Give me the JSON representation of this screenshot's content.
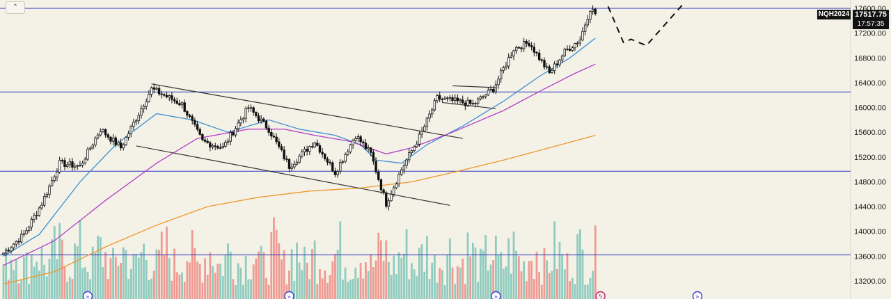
{
  "toolbar": {
    "collapse_icon": "chevron-up-icon",
    "collapse_glyph": "⌃"
  },
  "symbol": "NQH2024",
  "last_price": "17517.75",
  "countdown": "17:57:35",
  "colors": {
    "background": "#f4f2e6",
    "up": "#111111",
    "down": "#111111",
    "vol_up": "#8fcbbf",
    "vol_down": "#ef9a93",
    "ma_fast": "#3b8fd4",
    "ma_mid": "#b23ec8",
    "ma_slow": "#f0962a",
    "hline": "#2f36c0",
    "channel": "#333333",
    "projection": "#111111"
  },
  "chart_data": {
    "type": "candlestick",
    "y_axis": {
      "ticks": [
        "17600.00",
        "17200.00",
        "16800.00",
        "16400.00",
        "16000.00",
        "15600.00",
        "15200.00",
        "14800.00",
        "14400.00",
        "14000.00",
        "13600.00",
        "13200.00"
      ],
      "range": [
        13100,
        17700
      ]
    },
    "horizontal_levels": [
      17600,
      16250,
      14970,
      13620
    ],
    "anchors": [
      {
        "i": 0,
        "p": 13650
      },
      {
        "i": 8,
        "p": 13950
      },
      {
        "i": 15,
        "p": 14450
      },
      {
        "i": 22,
        "p": 15100
      },
      {
        "i": 30,
        "p": 15050
      },
      {
        "i": 38,
        "p": 15650
      },
      {
        "i": 46,
        "p": 15350
      },
      {
        "i": 58,
        "p": 16300
      },
      {
        "i": 70,
        "p": 16050
      },
      {
        "i": 78,
        "p": 15450
      },
      {
        "i": 86,
        "p": 15350
      },
      {
        "i": 96,
        "p": 16000
      },
      {
        "i": 104,
        "p": 15650
      },
      {
        "i": 112,
        "p": 15050
      },
      {
        "i": 122,
        "p": 15450
      },
      {
        "i": 130,
        "p": 14950
      },
      {
        "i": 138,
        "p": 15550
      },
      {
        "i": 144,
        "p": 15250
      },
      {
        "i": 150,
        "p": 14450
      },
      {
        "i": 156,
        "p": 15000
      },
      {
        "i": 164,
        "p": 15600
      },
      {
        "i": 170,
        "p": 16150
      },
      {
        "i": 184,
        "p": 16050
      },
      {
        "i": 192,
        "p": 16300
      },
      {
        "i": 200,
        "p": 16950
      },
      {
        "i": 206,
        "p": 17050
      },
      {
        "i": 214,
        "p": 16550
      },
      {
        "i": 220,
        "p": 16900
      },
      {
        "i": 226,
        "p": 17100
      },
      {
        "i": 230,
        "p": 17600
      },
      {
        "i": 232,
        "p": 17517
      }
    ],
    "candle_count": 233,
    "moving_averages": [
      {
        "name": "MA fast",
        "color_key": "ma_fast",
        "points": [
          [
            0,
            13600
          ],
          [
            14,
            13950
          ],
          [
            30,
            14800
          ],
          [
            44,
            15400
          ],
          [
            60,
            15900
          ],
          [
            74,
            15800
          ],
          [
            88,
            15600
          ],
          [
            104,
            15800
          ],
          [
            116,
            15650
          ],
          [
            130,
            15550
          ],
          [
            140,
            15400
          ],
          [
            146,
            15150
          ],
          [
            156,
            15100
          ],
          [
            166,
            15400
          ],
          [
            180,
            15700
          ],
          [
            196,
            16100
          ],
          [
            210,
            16500
          ],
          [
            222,
            16800
          ],
          [
            232,
            17120
          ]
        ]
      },
      {
        "name": "MA mid",
        "color_key": "ma_mid",
        "points": [
          [
            0,
            13450
          ],
          [
            20,
            13850
          ],
          [
            40,
            14500
          ],
          [
            60,
            15100
          ],
          [
            76,
            15500
          ],
          [
            96,
            15650
          ],
          [
            110,
            15650
          ],
          [
            122,
            15550
          ],
          [
            136,
            15450
          ],
          [
            150,
            15250
          ],
          [
            160,
            15350
          ],
          [
            176,
            15600
          ],
          [
            196,
            15950
          ],
          [
            212,
            16300
          ],
          [
            224,
            16550
          ],
          [
            232,
            16700
          ]
        ]
      },
      {
        "name": "MA slow",
        "color_key": "ma_slow",
        "points": [
          [
            0,
            13150
          ],
          [
            20,
            13350
          ],
          [
            40,
            13750
          ],
          [
            60,
            14100
          ],
          [
            80,
            14400
          ],
          [
            100,
            14550
          ],
          [
            120,
            14650
          ],
          [
            140,
            14700
          ],
          [
            160,
            14800
          ],
          [
            176,
            14950
          ],
          [
            196,
            15150
          ],
          [
            214,
            15350
          ],
          [
            232,
            15550
          ]
        ]
      }
    ],
    "channel_lines": [
      [
        [
          58,
          16380
        ],
        [
          180,
          15500
        ]
      ],
      [
        [
          52,
          15380
        ],
        [
          175,
          14420
        ]
      ],
      [
        [
          176,
          16350
        ],
        [
          193,
          16320
        ]
      ],
      [
        [
          172,
          16080
        ],
        [
          193,
          15980
        ]
      ]
    ],
    "projection_path": [
      [
        237,
        17630
      ],
      [
        243,
        17050
      ],
      [
        246,
        17100
      ],
      [
        252,
        17000
      ],
      [
        266,
        17650
      ]
    ],
    "volume": {
      "min_height": 20,
      "max_height": 118
    }
  },
  "event_markers": [
    {
      "name": "event-marker",
      "glyph": "»",
      "i": 33
    },
    {
      "name": "event-marker",
      "glyph": "»",
      "i": 112
    },
    {
      "name": "event-marker",
      "glyph": "»",
      "i": 193
    },
    {
      "name": "event-marker",
      "glyph": "»",
      "i": 272
    },
    {
      "name": "dividend-marker",
      "glyph": "ϟ",
      "i": 234
    }
  ]
}
